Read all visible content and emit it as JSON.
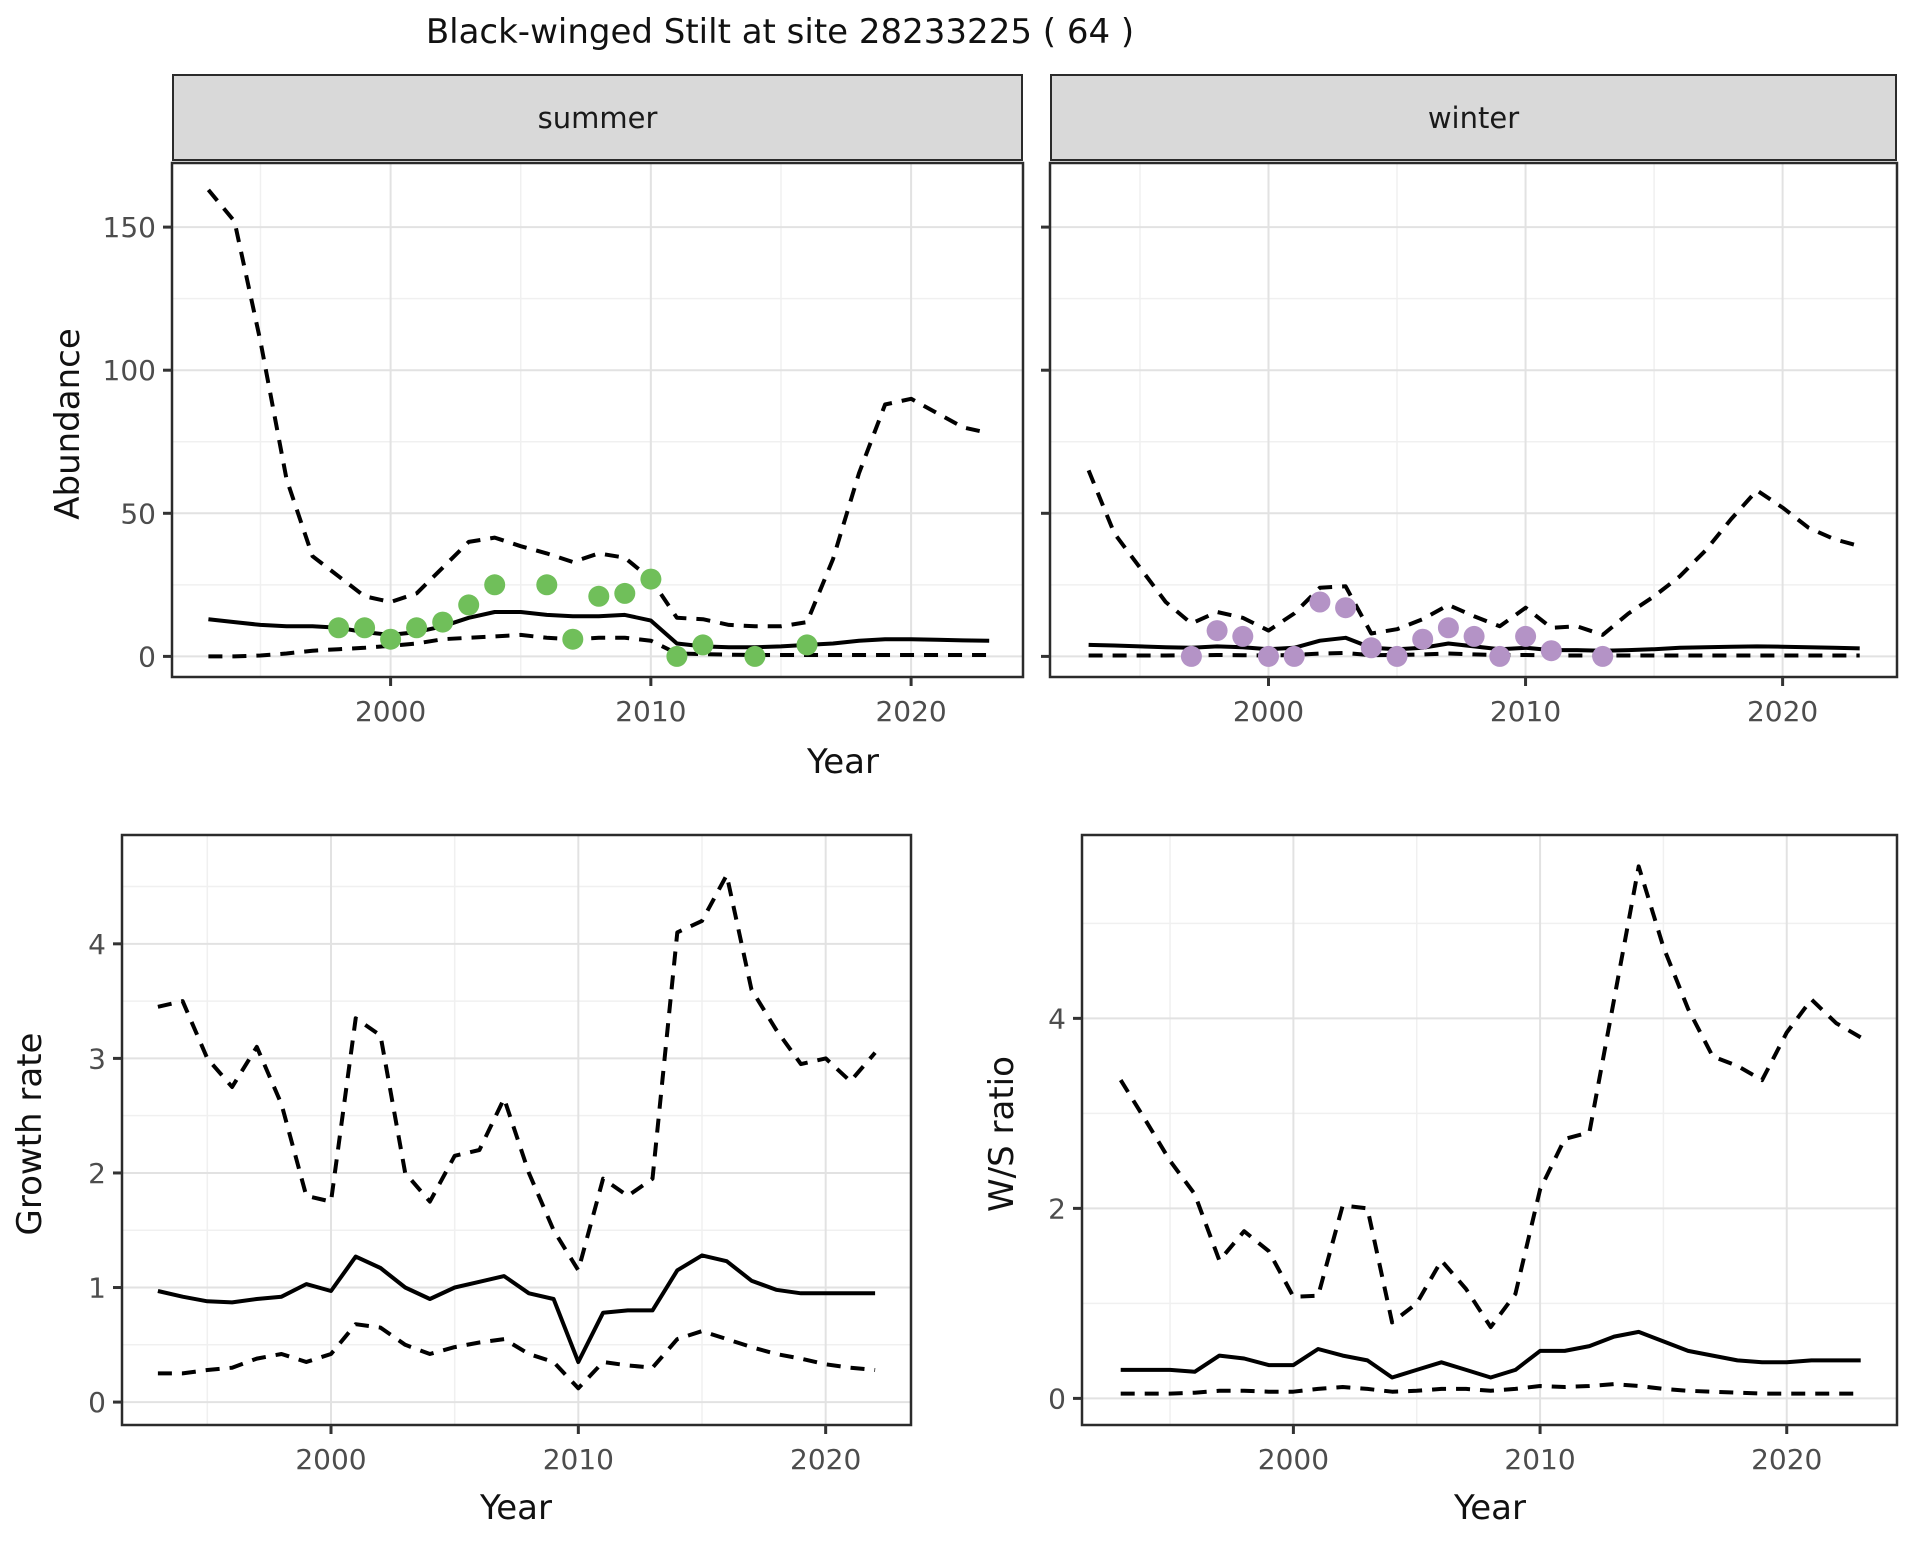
{
  "title": "Black-winged Stilt at site 28233225 ( 64 )",
  "labels": {
    "abundance": "Abundance",
    "growth": "Growth rate",
    "ws": "W/S ratio",
    "year_top": "Year",
    "year_growth": "Year",
    "year_ws": "Year",
    "facet_summer": "summer",
    "facet_winter": "winter"
  },
  "colors": {
    "summer_point": "#70bf5a",
    "winter_point": "#b493c6",
    "line": "#000000",
    "strip_bg": "#d9d9d9",
    "panel_border": "#2b2b2b",
    "grid_major": "#e2e2e2",
    "grid_minor": "#f0f0f0",
    "axis_text": "#4d4d4d",
    "tick_mark": "#333333"
  },
  "chart_data": [
    {
      "id": "abundance_summer",
      "type": "line",
      "facet": "summer",
      "title": "Black-winged Stilt at site 28233225 ( 64 )",
      "xlabel": "Year",
      "ylabel": "Abundance",
      "xlim": [
        1991.6,
        2024.3
      ],
      "ylim": [
        -7.2,
        172.4
      ],
      "xticks": [
        2000,
        2010,
        2020
      ],
      "xminor": [
        1995,
        2005,
        2015
      ],
      "yticks": [
        0,
        50,
        100,
        150
      ],
      "yminor": [
        25,
        75,
        125
      ],
      "show_ytick_labels": true,
      "x_start": 1993,
      "series": [
        {
          "name": "upper_ci",
          "style": "dashed",
          "y": [
            163,
            152,
            110,
            62,
            35,
            28,
            21,
            19,
            22,
            31,
            40,
            41.5,
            38.5,
            36,
            33,
            36,
            34.5,
            27,
            13.5,
            13,
            11,
            10.5,
            10.5,
            12,
            34,
            64,
            88,
            90,
            85,
            80,
            78
          ]
        },
        {
          "name": "mean",
          "style": "solid",
          "y": [
            13,
            12,
            11,
            10.5,
            10.5,
            10,
            8.5,
            7.5,
            8.5,
            10.5,
            13.5,
            15.5,
            15.5,
            14.5,
            14,
            14,
            14.5,
            12.5,
            4.5,
            3.5,
            3.2,
            3.2,
            3.5,
            4,
            4.5,
            5.5,
            6,
            6,
            5.8,
            5.6,
            5.5
          ]
        },
        {
          "name": "lower_ci",
          "style": "dashed",
          "y": [
            0,
            0,
            0.3,
            1,
            2,
            2.5,
            3,
            3.7,
            4.5,
            6,
            6.5,
            7,
            7.5,
            6.5,
            6,
            6.5,
            6.5,
            5.5,
            1,
            0.8,
            0.6,
            0.5,
            0.5,
            0.5,
            0.5,
            0.5,
            0.5,
            0.5,
            0.5,
            0.5,
            0.5
          ]
        }
      ],
      "points": {
        "name": "observed_counts",
        "color_key": "summer_point",
        "x": [
          1998,
          1999,
          2000,
          2001,
          2002,
          2003,
          2004,
          2006,
          2007,
          2008,
          2009,
          2010,
          2011,
          2012,
          2014,
          2016
        ],
        "y": [
          10,
          10,
          6,
          10,
          12,
          18,
          25,
          25,
          6,
          21,
          22,
          27,
          0,
          4,
          0,
          4
        ]
      }
    },
    {
      "id": "abundance_winter",
      "type": "line",
      "facet": "winter",
      "xlabel": "Year",
      "ylabel": "Abundance",
      "xlim": [
        1991.5,
        2024.45
      ],
      "ylim": [
        -7.2,
        172.4
      ],
      "xticks": [
        2000,
        2010,
        2020
      ],
      "xminor": [
        1995,
        2005,
        2015
      ],
      "yticks": [
        0,
        50,
        100,
        150
      ],
      "yminor": [
        25,
        75,
        125
      ],
      "show_ytick_labels": false,
      "x_start": 1993,
      "series": [
        {
          "name": "upper_ci",
          "style": "dashed",
          "y": [
            65,
            43,
            31,
            19,
            11.5,
            15.5,
            13.5,
            9,
            15,
            24,
            24.5,
            8,
            9.5,
            13,
            18,
            14,
            10.5,
            17,
            10,
            10.5,
            7.5,
            15,
            21,
            28,
            37,
            48,
            58,
            52,
            45,
            41,
            38.5
          ]
        },
        {
          "name": "mean",
          "style": "solid",
          "y": [
            4,
            3.8,
            3.5,
            3.2,
            3,
            3.5,
            3.2,
            2.5,
            3,
            5.5,
            6.5,
            3,
            2.5,
            3,
            4.5,
            3.5,
            2.5,
            3,
            2.2,
            2.2,
            2,
            2.2,
            2.5,
            3,
            3.2,
            3.4,
            3.5,
            3.4,
            3.2,
            3,
            2.8
          ]
        },
        {
          "name": "lower_ci",
          "style": "dashed",
          "y": [
            0.3,
            0.3,
            0.3,
            0.3,
            0.4,
            0.5,
            0.4,
            0.3,
            0.5,
            1,
            1.2,
            0.4,
            0.5,
            0.7,
            1,
            0.7,
            0.4,
            0.5,
            0.3,
            0.3,
            0.3,
            0.3,
            0.3,
            0.3,
            0.3,
            0.3,
            0.3,
            0.3,
            0.3,
            0.3,
            0.3
          ]
        }
      ],
      "points": {
        "name": "observed_counts",
        "color_key": "winter_point",
        "x": [
          1997,
          1998,
          1999,
          2000,
          2001,
          2002,
          2003,
          2004,
          2005,
          2006,
          2007,
          2008,
          2009,
          2010,
          2011,
          2013
        ],
        "y": [
          0,
          9,
          7,
          0,
          0,
          19,
          17,
          3,
          0,
          6,
          10,
          7,
          0,
          7,
          2,
          0
        ]
      }
    },
    {
      "id": "growth_rate",
      "type": "line",
      "xlabel": "Year",
      "ylabel": "Growth rate",
      "xlim": [
        1991.55,
        2023.45
      ],
      "ylim": [
        -0.2,
        4.95
      ],
      "xticks": [
        2000,
        2010,
        2020
      ],
      "xminor": [
        1995,
        2005,
        2015
      ],
      "yticks": [
        0,
        1,
        2,
        3,
        4
      ],
      "yminor": [
        0.5,
        1.5,
        2.5,
        3.5,
        4.5
      ],
      "show_ytick_labels": true,
      "x_start": 1993,
      "series": [
        {
          "name": "upper_ci",
          "style": "dashed",
          "y": [
            3.45,
            3.5,
            3.0,
            2.75,
            3.1,
            2.6,
            1.8,
            1.75,
            3.35,
            3.2,
            2.0,
            1.75,
            2.15,
            2.2,
            2.65,
            2.0,
            1.5,
            1.15,
            1.95,
            1.8,
            1.95,
            4.1,
            4.2,
            4.6,
            3.6,
            3.25,
            2.95,
            3.0,
            2.8,
            3.05
          ]
        },
        {
          "name": "mean",
          "style": "solid",
          "y": [
            0.97,
            0.92,
            0.88,
            0.87,
            0.9,
            0.92,
            1.03,
            0.97,
            1.27,
            1.17,
            1.0,
            0.9,
            1.0,
            1.05,
            1.1,
            0.95,
            0.9,
            0.35,
            0.78,
            0.8,
            0.8,
            1.15,
            1.28,
            1.23,
            1.06,
            0.98,
            0.95,
            0.95,
            0.95,
            0.95
          ]
        },
        {
          "name": "lower_ci",
          "style": "dashed",
          "y": [
            0.25,
            0.25,
            0.28,
            0.3,
            0.38,
            0.42,
            0.35,
            0.42,
            0.68,
            0.65,
            0.5,
            0.42,
            0.48,
            0.52,
            0.55,
            0.42,
            0.35,
            0.12,
            0.35,
            0.32,
            0.3,
            0.55,
            0.62,
            0.55,
            0.48,
            0.42,
            0.38,
            0.33,
            0.3,
            0.28
          ]
        }
      ],
      "points": null
    },
    {
      "id": "ws_ratio",
      "type": "line",
      "xlabel": "Year",
      "ylabel": "W/S ratio",
      "xlim": [
        1991.43,
        2024.47
      ],
      "ylim": [
        -0.28,
        5.93
      ],
      "xticks": [
        2000,
        2010,
        2020
      ],
      "xminor": [
        1995,
        2005,
        2015
      ],
      "yticks": [
        0,
        2,
        4
      ],
      "yminor": [
        1,
        3,
        5
      ],
      "show_ytick_labels": true,
      "x_start": 1993,
      "series": [
        {
          "name": "upper_ci",
          "style": "dashed",
          "y": [
            3.35,
            2.93,
            2.5,
            2.15,
            1.45,
            1.76,
            1.55,
            1.07,
            1.08,
            2.03,
            2.0,
            0.8,
            1.0,
            1.45,
            1.15,
            0.75,
            1.1,
            2.2,
            2.73,
            2.8,
            4.2,
            5.6,
            4.75,
            4.1,
            3.6,
            3.5,
            3.35,
            3.85,
            4.2,
            3.95,
            3.8
          ]
        },
        {
          "name": "mean",
          "style": "solid",
          "y": [
            0.3,
            0.3,
            0.3,
            0.28,
            0.45,
            0.42,
            0.35,
            0.35,
            0.52,
            0.45,
            0.4,
            0.22,
            0.3,
            0.38,
            0.3,
            0.22,
            0.3,
            0.5,
            0.5,
            0.55,
            0.65,
            0.7,
            0.6,
            0.5,
            0.45,
            0.4,
            0.38,
            0.38,
            0.4,
            0.4,
            0.4
          ]
        },
        {
          "name": "lower_ci",
          "style": "dashed",
          "y": [
            0.05,
            0.05,
            0.05,
            0.06,
            0.08,
            0.08,
            0.07,
            0.07,
            0.1,
            0.12,
            0.1,
            0.07,
            0.08,
            0.1,
            0.1,
            0.08,
            0.1,
            0.13,
            0.12,
            0.13,
            0.15,
            0.13,
            0.1,
            0.08,
            0.07,
            0.06,
            0.05,
            0.05,
            0.05,
            0.05,
            0.05
          ]
        }
      ],
      "points": null
    }
  ]
}
